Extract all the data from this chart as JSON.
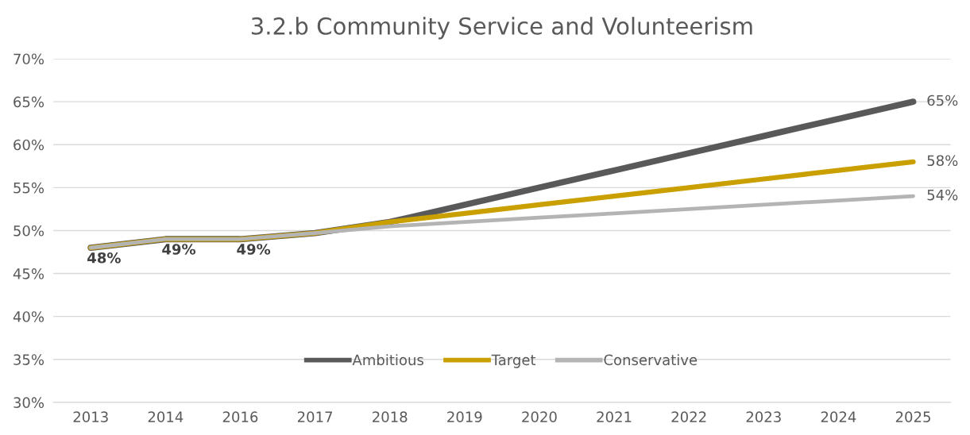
{
  "chart_data": {
    "type": "line",
    "title": "3.2.b Community Service and Volunteerism",
    "categories": [
      "2013",
      "2014",
      "2016",
      "2017",
      "2018",
      "2019",
      "2020",
      "2021",
      "2022",
      "2023",
      "2024",
      "2025"
    ],
    "series": [
      {
        "name": "Ambitious",
        "color": "#595959",
        "values": [
          48,
          49,
          49,
          49.7,
          51,
          53,
          55,
          57,
          59,
          61,
          63,
          65
        ],
        "value_labels": [
          null,
          null,
          null,
          null,
          null,
          null,
          null,
          null,
          null,
          null,
          null,
          "65%"
        ]
      },
      {
        "name": "Target",
        "color": "#c9a000",
        "values": [
          48,
          49,
          49,
          49.7,
          51,
          52,
          53,
          54,
          55,
          56,
          57,
          58
        ],
        "value_labels": [
          null,
          null,
          null,
          null,
          null,
          null,
          null,
          null,
          null,
          null,
          null,
          "58%"
        ]
      },
      {
        "name": "Conservative",
        "color": "#b4b4b4",
        "values": [
          48,
          49,
          49,
          49.7,
          50.5,
          51,
          51.5,
          52,
          52.5,
          53,
          53.5,
          54
        ],
        "value_labels": [
          "48%",
          "49%",
          "49%",
          null,
          null,
          null,
          null,
          null,
          null,
          null,
          null,
          "54%"
        ]
      }
    ],
    "ylim": [
      30,
      70
    ],
    "yticks": [
      {
        "value": 30,
        "label": "30%"
      },
      {
        "value": 35,
        "label": "35%"
      },
      {
        "value": 40,
        "label": "40%"
      },
      {
        "value": 45,
        "label": "45%"
      },
      {
        "value": 50,
        "label": "50%"
      },
      {
        "value": 55,
        "label": "55%"
      },
      {
        "value": 60,
        "label": "60%"
      },
      {
        "value": 65,
        "label": "65%"
      },
      {
        "value": 70,
        "label": "70%"
      }
    ],
    "grid": "y",
    "legend": "bottom",
    "marker": "none",
    "line_style": "solid"
  }
}
